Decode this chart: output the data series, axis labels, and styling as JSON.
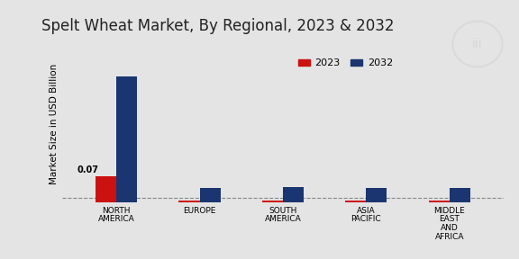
{
  "title": "Spelt Wheat Market, By Regional, 2023 & 2032",
  "ylabel": "Market Size in USD Billion",
  "categories": [
    "NORTH\nAMERICA",
    "EUROPE",
    "SOUTH\nAMERICA",
    "ASIA\nPACIFIC",
    "MIDDLE\nEAST\nAND\nAFRICA"
  ],
  "values_2023": [
    0.07,
    0.004,
    0.004,
    0.004,
    0.004
  ],
  "values_2032": [
    0.34,
    0.038,
    0.04,
    0.038,
    0.038
  ],
  "color_2023": "#cc1111",
  "color_2032": "#1a3570",
  "annotation_text": "0.07",
  "bar_width": 0.25,
  "ylim": [
    0,
    0.42
  ],
  "background_color": "#e4e4e4",
  "plot_background": "#e4e4e4",
  "legend_labels": [
    "2023",
    "2032"
  ],
  "title_fontsize": 12,
  "axis_label_fontsize": 7.5,
  "tick_fontsize": 6.5,
  "legend_fontsize": 8,
  "dashed_line_y": 0.012
}
